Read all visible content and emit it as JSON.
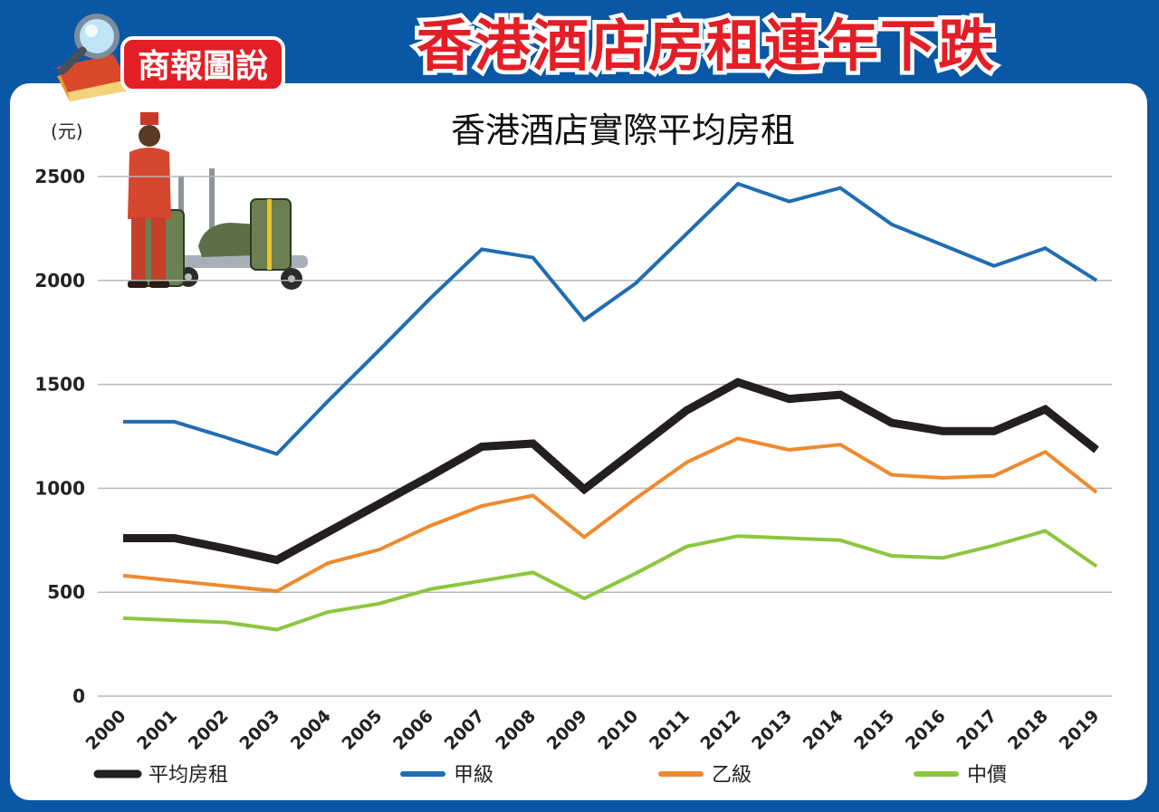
{
  "header": {
    "badge_text": "商報圖說",
    "headline": "香港酒店房租連年下跌"
  },
  "colors": {
    "frame_blue": "#0a57a5",
    "headline_red": "#e41e26",
    "avg": "#231f20",
    "grade_a": "#1f6db3",
    "grade_b": "#ee8a2e",
    "mid": "#8cc63f",
    "grid": "#b8b8b8"
  },
  "illustration": {
    "icon": "bellhop-luggage-cart-icon"
  },
  "chart_data": {
    "type": "line",
    "title": "香港酒店實際平均房租",
    "ylabel": "(元)",
    "xlabel": "",
    "ylim": [
      0,
      2500
    ],
    "yticks": [
      0,
      500,
      1000,
      1500,
      2000,
      2500
    ],
    "grid": true,
    "legend_position": "bottom",
    "categories": [
      "2000",
      "2001",
      "2002",
      "2003",
      "2004",
      "2005",
      "2006",
      "2007",
      "2008",
      "2009",
      "2010",
      "2011",
      "2012",
      "2013",
      "2014",
      "2015",
      "2016",
      "2017",
      "2018",
      "2019"
    ],
    "series": [
      {
        "key": "avg",
        "name": "平均房租",
        "color": "#231f20",
        "width": 9,
        "values": [
          760,
          760,
          710,
          655,
          790,
          925,
          1060,
          1200,
          1215,
          995,
          1185,
          1375,
          1510,
          1430,
          1450,
          1315,
          1275,
          1275,
          1380,
          1185
        ]
      },
      {
        "key": "grade_a",
        "name": "甲級",
        "color": "#1f6db3",
        "width": 4,
        "values": [
          1320,
          1320,
          1245,
          1165,
          1420,
          1665,
          1915,
          2150,
          2110,
          1810,
          1985,
          2225,
          2465,
          2380,
          2445,
          2270,
          2170,
          2070,
          2155,
          2000
        ]
      },
      {
        "key": "grade_b",
        "name": "乙級",
        "color": "#ee8a2e",
        "width": 4,
        "values": [
          580,
          555,
          530,
          505,
          640,
          705,
          820,
          915,
          965,
          765,
          950,
          1125,
          1240,
          1185,
          1210,
          1065,
          1050,
          1060,
          1175,
          980
        ]
      },
      {
        "key": "mid",
        "name": "中價",
        "color": "#8cc63f",
        "width": 4,
        "values": [
          375,
          365,
          355,
          320,
          405,
          445,
          515,
          555,
          595,
          470,
          590,
          720,
          770,
          760,
          750,
          675,
          665,
          725,
          795,
          625
        ]
      }
    ]
  }
}
